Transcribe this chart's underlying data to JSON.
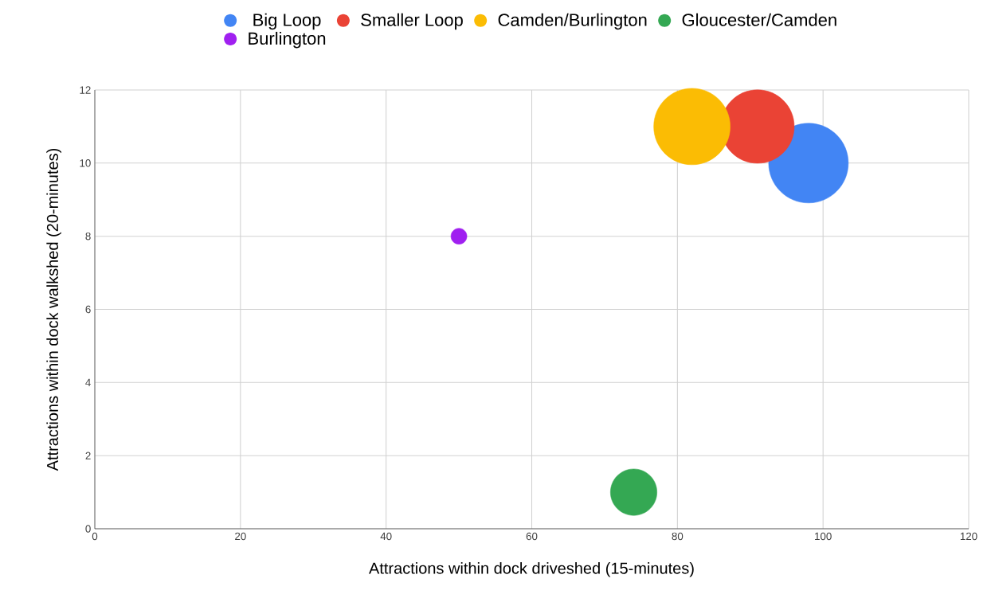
{
  "chart_data": {
    "type": "bubble",
    "xlabel": "Attractions within dock driveshed (15-minutes)",
    "ylabel": "Attractions within dock walkshed (20-minutes)",
    "xlim": [
      0,
      120
    ],
    "ylim": [
      0,
      12
    ],
    "xticks": [
      0,
      20,
      40,
      60,
      80,
      100,
      120
    ],
    "yticks": [
      0,
      2,
      4,
      6,
      8,
      10,
      12
    ],
    "grid": true,
    "legend": "top",
    "series": [
      {
        "name": "Big Loop",
        "color": "#4285f4",
        "x": [
          98
        ],
        "values": [
          10
        ],
        "sizes": [
          1
        ]
      },
      {
        "name": "Smaller Loop",
        "color": "#ea4335",
        "x": [
          91
        ],
        "values": [
          11
        ],
        "sizes": [
          0.85
        ]
      },
      {
        "name": "Camden/Burlington",
        "color": "#fbbc04",
        "x": [
          82
        ],
        "values": [
          11
        ],
        "sizes": [
          0.92
        ]
      },
      {
        "name": "Gloucester/Camden",
        "color": "#34a853",
        "x": [
          74
        ],
        "values": [
          1
        ],
        "sizes": [
          0.34
        ]
      },
      {
        "name": "Burlington",
        "color": "#a020f0",
        "x": [
          50
        ],
        "values": [
          8
        ],
        "sizes": [
          0.04
        ]
      }
    ]
  }
}
